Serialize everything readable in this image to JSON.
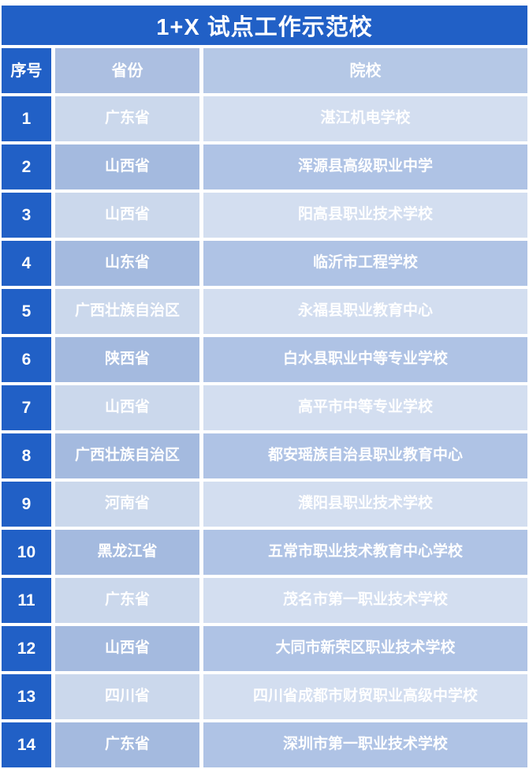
{
  "title": "1+X 试点工作示范校",
  "table": {
    "headers": {
      "index": "序号",
      "province": "省份",
      "school": "院校"
    },
    "rows": [
      {
        "index": "1",
        "province": "广东省",
        "school": "湛江机电学校"
      },
      {
        "index": "2",
        "province": "山西省",
        "school": "浑源县高级职业中学"
      },
      {
        "index": "3",
        "province": "山西省",
        "school": "阳高县职业技术学校"
      },
      {
        "index": "4",
        "province": "山东省",
        "school": "临沂市工程学校"
      },
      {
        "index": "5",
        "province": "广西壮族自治区",
        "school": "永福县职业教育中心"
      },
      {
        "index": "6",
        "province": "陕西省",
        "school": "白水县职业中等专业学校"
      },
      {
        "index": "7",
        "province": "山西省",
        "school": "高平市中等专业学校"
      },
      {
        "index": "8",
        "province": "广西壮族自治区",
        "school": "都安瑶族自治县职业教育中心"
      },
      {
        "index": "9",
        "province": "河南省",
        "school": "濮阳县职业技术学校"
      },
      {
        "index": "10",
        "province": "黑龙江省",
        "school": "五常市职业技术教育中心学校"
      },
      {
        "index": "11",
        "province": "广东省",
        "school": "茂名市第一职业技术学校"
      },
      {
        "index": "12",
        "province": "山西省",
        "school": "大同市新荣区职业技术学校"
      },
      {
        "index": "13",
        "province": "四川省",
        "school": "四川省成都市财贸职业高级中学校"
      },
      {
        "index": "14",
        "province": "广东省",
        "school": "深圳市第一职业技术学校"
      }
    ]
  },
  "colors": {
    "primary_blue": "#2160C6",
    "header_province": "#ACBFE1",
    "header_school": "#B5C8E6",
    "row_light_province": "#CBD8EC",
    "row_light_school": "#D3DEF0",
    "row_medium_province": "#A4BADF",
    "row_medium_school": "#AFC3E5",
    "text": "#FFFFFF",
    "background": "#FFFFFF"
  }
}
